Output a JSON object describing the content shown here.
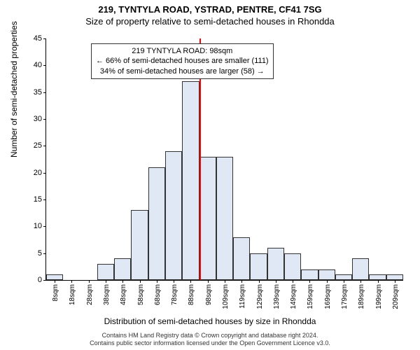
{
  "chart": {
    "type": "histogram",
    "title_main": "219, TYNTYLA ROAD, YSTRAD, PENTRE, CF41 7SG",
    "title_sub": "Size of property relative to semi-detached houses in Rhondda",
    "xlabel": "Distribution of semi-detached houses by size in Rhondda",
    "ylabel": "Number of semi-detached properties",
    "ylim": [
      0,
      45
    ],
    "ytick_step": 5,
    "yticks": [
      0,
      5,
      10,
      15,
      20,
      25,
      30,
      35,
      40,
      45
    ],
    "xticks": [
      "8sqm",
      "18sqm",
      "28sqm",
      "38sqm",
      "48sqm",
      "58sqm",
      "68sqm",
      "78sqm",
      "88sqm",
      "98sqm",
      "109sqm",
      "119sqm",
      "129sqm",
      "139sqm",
      "149sqm",
      "159sqm",
      "169sqm",
      "179sqm",
      "189sqm",
      "199sqm",
      "209sqm"
    ],
    "bars": [
      1,
      0,
      0,
      3,
      4,
      13,
      21,
      24,
      37,
      23,
      23,
      8,
      5,
      6,
      5,
      2,
      2,
      1,
      4,
      1,
      1
    ],
    "bar_fill": "#e1e8f5",
    "bar_border": "#333333",
    "background": "#ffffff",
    "ref_line_index": 9,
    "ref_line_color": "#ff0000",
    "callout": {
      "line1": "219 TYNTYLA ROAD: 98sqm",
      "line2": "← 66% of semi-detached houses are smaller (111)",
      "line3": "34% of semi-detached houses are larger (58) →"
    },
    "attribution_line1": "Contains HM Land Registry data © Crown copyright and database right 2024.",
    "attribution_line2": "Contains public sector information licensed under the Open Government Licence v3.0."
  }
}
